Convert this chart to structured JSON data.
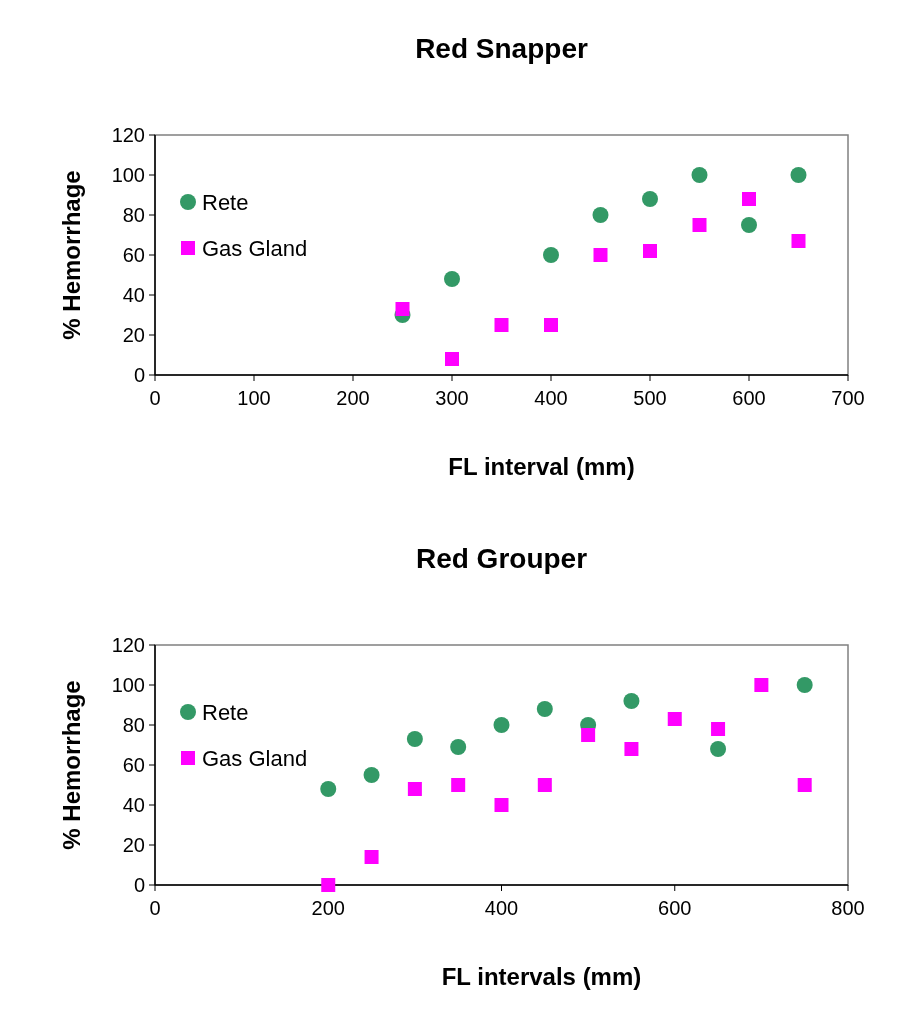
{
  "chart_data": [
    {
      "type": "scatter",
      "title": "Red Snapper",
      "xlabel": "FL interval (mm)",
      "ylabel": "% Hemorrhage",
      "xlim": [
        0,
        700
      ],
      "xticks": [
        0,
        100,
        200,
        300,
        400,
        500,
        600,
        700
      ],
      "ylim": [
        0,
        120
      ],
      "yticks": [
        0,
        20,
        40,
        60,
        80,
        100,
        120
      ],
      "legend": "top left",
      "grid": false,
      "series": [
        {
          "name": "Rete",
          "color": "#339966",
          "marker": "circle",
          "x": [
            250,
            300,
            400,
            450,
            500,
            550,
            600,
            650
          ],
          "values": [
            30,
            48,
            60,
            80,
            88,
            100,
            75,
            100
          ]
        },
        {
          "name": "Gas Gland",
          "color": "#ff00ff",
          "marker": "square",
          "x": [
            250,
            300,
            350,
            400,
            450,
            500,
            550,
            600,
            650
          ],
          "values": [
            33,
            8,
            25,
            25,
            60,
            62,
            75,
            88,
            67
          ]
        }
      ]
    },
    {
      "type": "scatter",
      "title": "Red Grouper",
      "xlabel": "FL intervals (mm)",
      "ylabel": "% Hemorrhage",
      "xlim": [
        0,
        800
      ],
      "xticks": [
        0,
        200,
        400,
        600,
        800
      ],
      "ylim": [
        0,
        120
      ],
      "yticks": [
        0,
        20,
        40,
        60,
        80,
        100,
        120
      ],
      "legend": "top left",
      "grid": false,
      "series": [
        {
          "name": "Rete",
          "color": "#339966",
          "marker": "circle",
          "x": [
            200,
            250,
            300,
            350,
            400,
            450,
            500,
            550,
            650,
            750
          ],
          "values": [
            48,
            55,
            73,
            69,
            80,
            88,
            80,
            92,
            68,
            100
          ]
        },
        {
          "name": "Gas Gland",
          "color": "#ff00ff",
          "marker": "square",
          "x": [
            200,
            250,
            300,
            350,
            400,
            450,
            500,
            550,
            600,
            650,
            700,
            750
          ],
          "values": [
            0,
            14,
            48,
            50,
            40,
            50,
            75,
            68,
            83,
            78,
            100,
            50
          ]
        }
      ]
    }
  ]
}
